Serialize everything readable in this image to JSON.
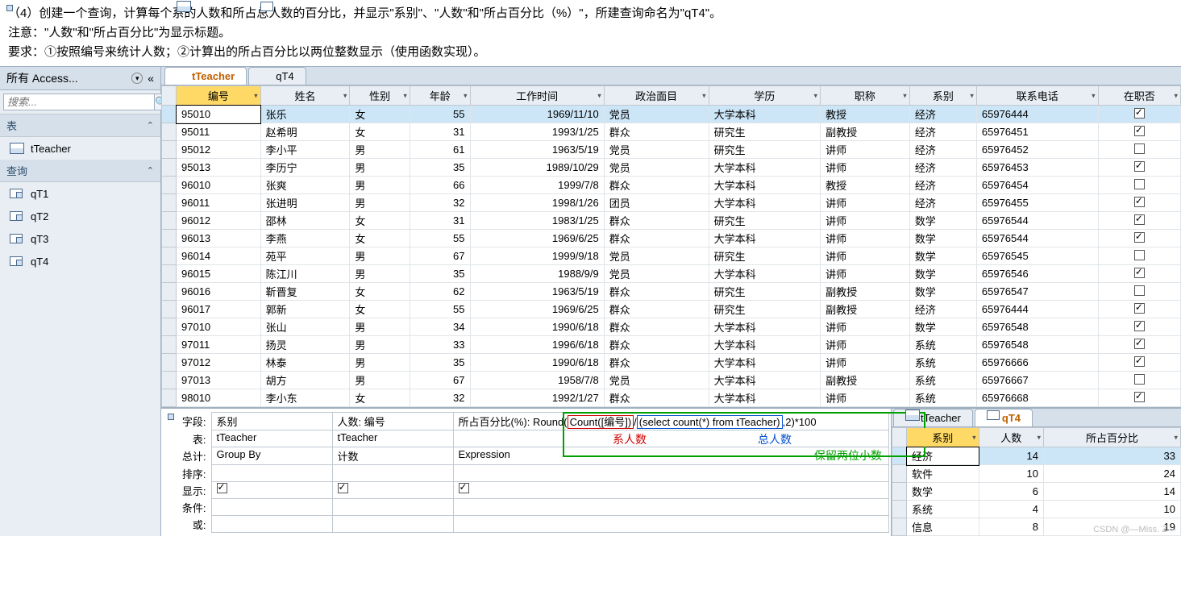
{
  "instructions": {
    "l1": "（4）创建一个查询，计算每个系的人数和所占总人数的百分比，并显示\"系别\"、\"人数\"和\"所占百分比（%）\"，所建查询命名为\"qT4\"。",
    "l2": "注意：\"人数\"和\"所占百分比\"为显示标题。",
    "l3": "要求：①按照编号来统计人数；②计算出的所占百分比以两位整数显示（使用函数实现）。"
  },
  "nav": {
    "header": "所有 Access...",
    "search_placeholder": "搜索...",
    "sec_tables": "表",
    "sec_queries": "查询",
    "tables": [
      "tTeacher"
    ],
    "queries": [
      "qT1",
      "qT2",
      "qT3",
      "qT4"
    ]
  },
  "tabs": {
    "t1": "tTeacher",
    "t2": "qT4"
  },
  "columns": [
    "编号",
    "姓名",
    "性别",
    "年龄",
    "工作时间",
    "政治面目",
    "学历",
    "职称",
    "系别",
    "联系电话",
    "在职否"
  ],
  "rows": [
    [
      "95010",
      "张乐",
      "女",
      "55",
      "1969/11/10",
      "党员",
      "大学本科",
      "教授",
      "经济",
      "65976444",
      true
    ],
    [
      "95011",
      "赵希明",
      "女",
      "31",
      "1993/1/25",
      "群众",
      "研究生",
      "副教授",
      "经济",
      "65976451",
      true
    ],
    [
      "95012",
      "李小平",
      "男",
      "61",
      "1963/5/19",
      "党员",
      "研究生",
      "讲师",
      "经济",
      "65976452",
      false
    ],
    [
      "95013",
      "李历宁",
      "男",
      "35",
      "1989/10/29",
      "党员",
      "大学本科",
      "讲师",
      "经济",
      "65976453",
      true
    ],
    [
      "96010",
      "张爽",
      "男",
      "66",
      "1999/7/8",
      "群众",
      "大学本科",
      "教授",
      "经济",
      "65976454",
      false
    ],
    [
      "96011",
      "张进明",
      "男",
      "32",
      "1998/1/26",
      "团员",
      "大学本科",
      "讲师",
      "经济",
      "65976455",
      true
    ],
    [
      "96012",
      "邵林",
      "女",
      "31",
      "1983/1/25",
      "群众",
      "研究生",
      "讲师",
      "数学",
      "65976544",
      true
    ],
    [
      "96013",
      "李燕",
      "女",
      "55",
      "1969/6/25",
      "群众",
      "大学本科",
      "讲师",
      "数学",
      "65976544",
      true
    ],
    [
      "96014",
      "苑平",
      "男",
      "67",
      "1999/9/18",
      "党员",
      "研究生",
      "讲师",
      "数学",
      "65976545",
      false
    ],
    [
      "96015",
      "陈江川",
      "男",
      "35",
      "1988/9/9",
      "党员",
      "大学本科",
      "讲师",
      "数学",
      "65976546",
      true
    ],
    [
      "96016",
      "靳晋复",
      "女",
      "62",
      "1963/5/19",
      "群众",
      "研究生",
      "副教授",
      "数学",
      "65976547",
      false
    ],
    [
      "96017",
      "郭新",
      "女",
      "55",
      "1969/6/25",
      "群众",
      "研究生",
      "副教授",
      "经济",
      "65976444",
      true
    ],
    [
      "97010",
      "张山",
      "男",
      "34",
      "1990/6/18",
      "群众",
      "大学本科",
      "讲师",
      "数学",
      "65976548",
      true
    ],
    [
      "97011",
      "扬灵",
      "男",
      "33",
      "1996/6/18",
      "群众",
      "大学本科",
      "讲师",
      "系统",
      "65976548",
      true
    ],
    [
      "97012",
      "林泰",
      "男",
      "35",
      "1990/6/18",
      "群众",
      "大学本科",
      "讲师",
      "系统",
      "65976666",
      true
    ],
    [
      "97013",
      "胡方",
      "男",
      "67",
      "1958/7/8",
      "党员",
      "大学本科",
      "副教授",
      "系统",
      "65976667",
      false
    ],
    [
      "98010",
      "李小东",
      "女",
      "32",
      "1992/1/27",
      "群众",
      "大学本科",
      "讲师",
      "系统",
      "65976668",
      true
    ]
  ],
  "design": {
    "labels": {
      "field": "字段:",
      "table": "表:",
      "total": "总计:",
      "sort": "排序:",
      "show": "显示:",
      "criteria": "条件:",
      "or": "或:"
    },
    "c1": {
      "field": "系别",
      "table": "tTeacher",
      "total": "Group By"
    },
    "c2": {
      "field": "人数: 编号",
      "table": "tTeacher",
      "total": "计数"
    },
    "c3": {
      "prefix": "所占百分比(%): ",
      "round_open": "Round(",
      "count_expr": "Count([编号])",
      "slash": "/",
      "sub_expr": "(select count(*) from tTeacher)",
      "suffix": ",2)*100",
      "total": "Expression"
    },
    "annot": {
      "red": "系人数",
      "blue": "总人数",
      "green": "保留两位小数"
    }
  },
  "result": {
    "tabs": {
      "t1": "tTeacher",
      "t2": "qT4"
    },
    "cols": [
      "系别",
      "人数",
      "所占百分比"
    ],
    "rows": [
      [
        "经济",
        "14",
        "33"
      ],
      [
        "软件",
        "10",
        "24"
      ],
      [
        "数学",
        "6",
        "14"
      ],
      [
        "系统",
        "4",
        "10"
      ],
      [
        "信息",
        "8",
        "19"
      ]
    ]
  },
  "watermark": "CSDN @—Miss. Z—"
}
